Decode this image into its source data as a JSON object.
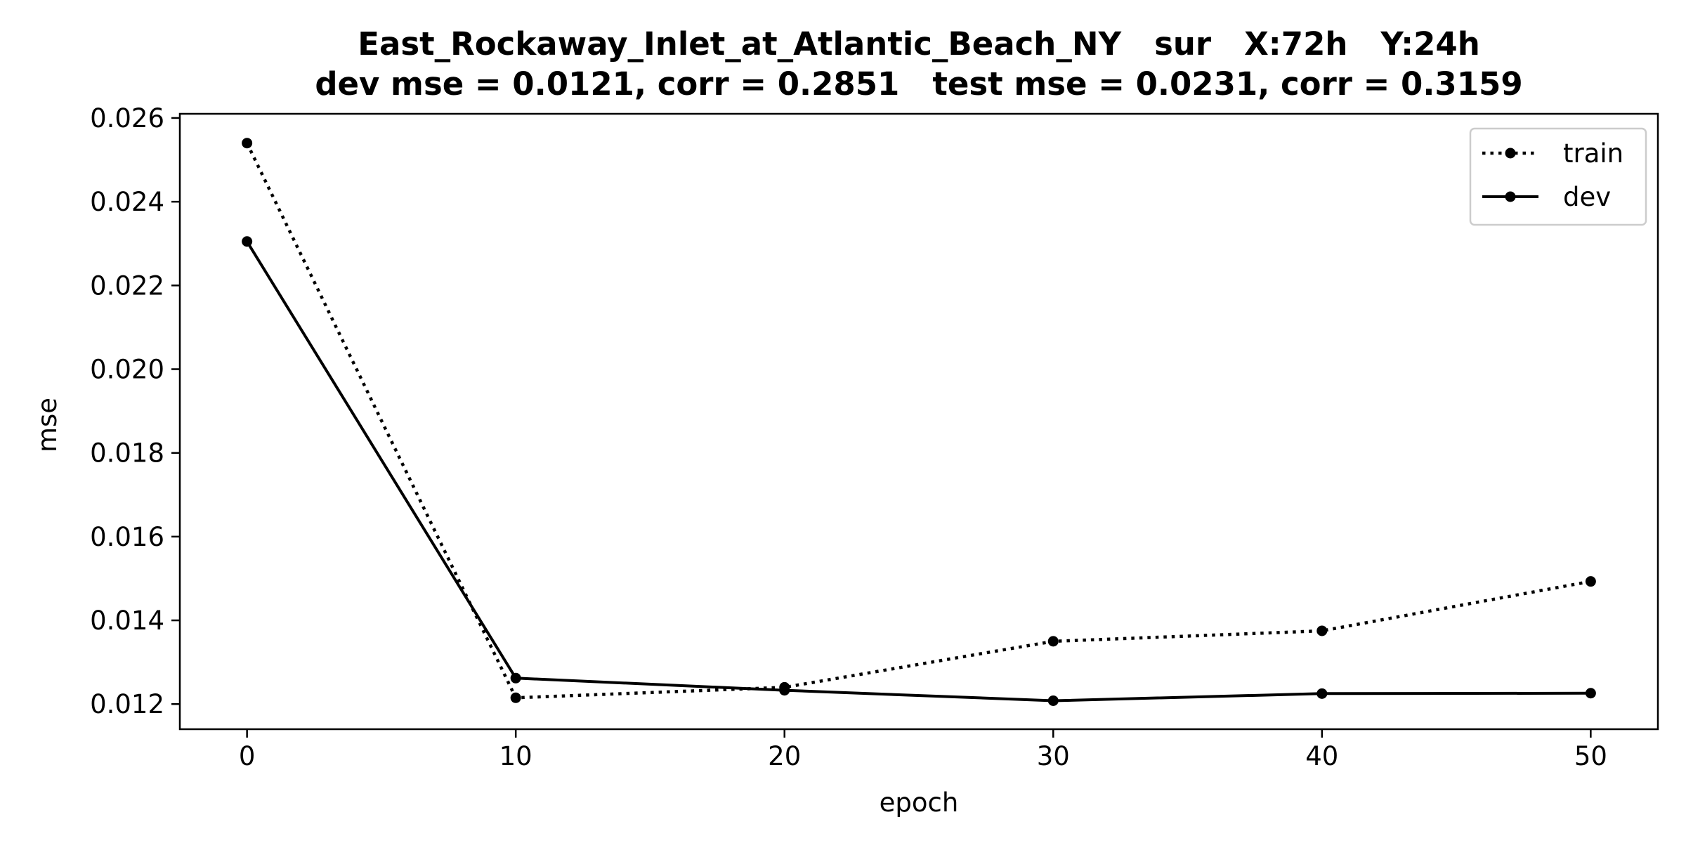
{
  "chart_data": {
    "type": "line",
    "title": "East_Rockaway_Inlet_at_Atlantic_Beach_NY   sur   X:72h   Y:24h",
    "subtitle": "dev mse = 0.0121, corr = 0.2851   test mse = 0.0231, corr = 0.3159",
    "xlabel": "epoch",
    "ylabel": "mse",
    "x": [
      0,
      10,
      20,
      30,
      40,
      50
    ],
    "xlim": [
      -2.5,
      52.5
    ],
    "ylim": [
      0.0114,
      0.0261
    ],
    "xticks": [
      0,
      10,
      20,
      30,
      40,
      50
    ],
    "yticks": [
      0.012,
      0.014,
      0.016,
      0.018,
      0.02,
      0.022,
      0.024,
      0.026
    ],
    "ytick_labels": [
      "0.012",
      "0.014",
      "0.016",
      "0.018",
      "0.020",
      "0.022",
      "0.024",
      "0.026"
    ],
    "grid": false,
    "legend": "top-right",
    "series": [
      {
        "name": "train",
        "style": "dotted",
        "color": "#000000",
        "values": [
          0.0254,
          0.01215,
          0.0124,
          0.0135,
          0.01375,
          0.01493
        ]
      },
      {
        "name": "dev",
        "style": "solid",
        "color": "#000000",
        "values": [
          0.02305,
          0.01262,
          0.01233,
          0.01208,
          0.01225,
          0.01226
        ]
      }
    ]
  }
}
